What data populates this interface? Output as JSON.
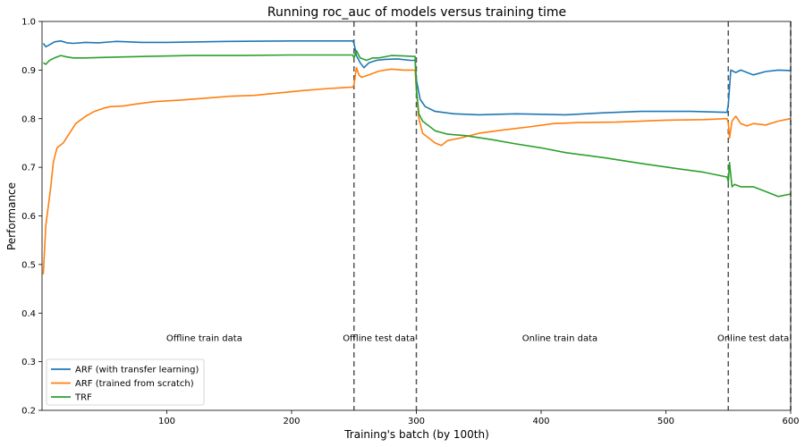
{
  "chart_data": {
    "type": "line",
    "title": "Running roc_auc of models versus training time",
    "xlabel": "Training's batch (by 100th)",
    "ylabel": "Performance",
    "xlim": [
      0,
      600
    ],
    "ylim": [
      0.2,
      1.0
    ],
    "xticks": [
      100,
      200,
      300,
      400,
      500,
      600
    ],
    "yticks": [
      0.2,
      0.3,
      0.4,
      0.5,
      0.6,
      0.7,
      0.8,
      0.9,
      1.0
    ],
    "grid": false,
    "legend_position": "lower-left",
    "vlines": [
      250,
      300,
      550,
      600
    ],
    "annotations": [
      {
        "text": "Offline train data",
        "x": 130,
        "y": 0.35
      },
      {
        "text": "Offline test data",
        "x": 270,
        "y": 0.35
      },
      {
        "text": "Online train data",
        "x": 415,
        "y": 0.35
      },
      {
        "text": "Online test data",
        "x": 570,
        "y": 0.35
      }
    ],
    "series": [
      {
        "name": "ARF (with transfer learning)",
        "color": "#1f77b4",
        "points": [
          [
            1,
            0.955
          ],
          [
            3,
            0.948
          ],
          [
            6,
            0.952
          ],
          [
            10,
            0.958
          ],
          [
            15,
            0.96
          ],
          [
            20,
            0.956
          ],
          [
            25,
            0.955
          ],
          [
            35,
            0.957
          ],
          [
            45,
            0.956
          ],
          [
            60,
            0.959
          ],
          [
            80,
            0.957
          ],
          [
            100,
            0.957
          ],
          [
            150,
            0.959
          ],
          [
            200,
            0.96
          ],
          [
            249,
            0.96
          ],
          [
            250,
            0.955
          ],
          [
            252,
            0.93
          ],
          [
            255,
            0.915
          ],
          [
            258,
            0.905
          ],
          [
            262,
            0.915
          ],
          [
            268,
            0.92
          ],
          [
            275,
            0.922
          ],
          [
            285,
            0.923
          ],
          [
            295,
            0.92
          ],
          [
            299,
            0.92
          ],
          [
            300,
            0.88
          ],
          [
            303,
            0.84
          ],
          [
            307,
            0.825
          ],
          [
            315,
            0.815
          ],
          [
            330,
            0.81
          ],
          [
            350,
            0.808
          ],
          [
            380,
            0.81
          ],
          [
            420,
            0.808
          ],
          [
            450,
            0.812
          ],
          [
            480,
            0.815
          ],
          [
            520,
            0.815
          ],
          [
            549,
            0.813
          ],
          [
            550,
            0.83
          ],
          [
            552,
            0.9
          ],
          [
            556,
            0.895
          ],
          [
            560,
            0.9
          ],
          [
            570,
            0.89
          ],
          [
            580,
            0.897
          ],
          [
            590,
            0.9
          ],
          [
            600,
            0.899
          ]
        ]
      },
      {
        "name": "ARF (trained from scratch)",
        "color": "#ff7f0e",
        "points": [
          [
            1,
            0.48
          ],
          [
            3,
            0.58
          ],
          [
            5,
            0.62
          ],
          [
            7,
            0.66
          ],
          [
            9,
            0.71
          ],
          [
            12,
            0.74
          ],
          [
            17,
            0.75
          ],
          [
            22,
            0.77
          ],
          [
            27,
            0.79
          ],
          [
            35,
            0.805
          ],
          [
            42,
            0.815
          ],
          [
            50,
            0.822
          ],
          [
            55,
            0.825
          ],
          [
            65,
            0.826
          ],
          [
            75,
            0.83
          ],
          [
            90,
            0.835
          ],
          [
            110,
            0.838
          ],
          [
            130,
            0.842
          ],
          [
            150,
            0.846
          ],
          [
            170,
            0.848
          ],
          [
            190,
            0.853
          ],
          [
            210,
            0.858
          ],
          [
            230,
            0.862
          ],
          [
            249,
            0.865
          ],
          [
            250,
            0.87
          ],
          [
            252,
            0.905
          ],
          [
            254,
            0.89
          ],
          [
            256,
            0.885
          ],
          [
            262,
            0.89
          ],
          [
            270,
            0.898
          ],
          [
            280,
            0.902
          ],
          [
            290,
            0.9
          ],
          [
            299,
            0.9
          ],
          [
            300,
            0.86
          ],
          [
            302,
            0.8
          ],
          [
            305,
            0.77
          ],
          [
            310,
            0.76
          ],
          [
            315,
            0.75
          ],
          [
            320,
            0.745
          ],
          [
            325,
            0.755
          ],
          [
            335,
            0.76
          ],
          [
            350,
            0.77
          ],
          [
            370,
            0.777
          ],
          [
            390,
            0.783
          ],
          [
            410,
            0.79
          ],
          [
            430,
            0.792
          ],
          [
            460,
            0.793
          ],
          [
            500,
            0.797
          ],
          [
            530,
            0.798
          ],
          [
            549,
            0.8
          ],
          [
            550,
            0.79
          ],
          [
            551,
            0.76
          ],
          [
            553,
            0.795
          ],
          [
            556,
            0.805
          ],
          [
            560,
            0.79
          ],
          [
            565,
            0.785
          ],
          [
            570,
            0.79
          ],
          [
            580,
            0.787
          ],
          [
            590,
            0.795
          ],
          [
            600,
            0.8
          ]
        ]
      },
      {
        "name": "TRF",
        "color": "#2ca02c",
        "points": [
          [
            1,
            0.915
          ],
          [
            3,
            0.912
          ],
          [
            6,
            0.92
          ],
          [
            10,
            0.925
          ],
          [
            15,
            0.93
          ],
          [
            20,
            0.927
          ],
          [
            25,
            0.925
          ],
          [
            35,
            0.925
          ],
          [
            50,
            0.926
          ],
          [
            80,
            0.928
          ],
          [
            120,
            0.93
          ],
          [
            160,
            0.93
          ],
          [
            200,
            0.931
          ],
          [
            249,
            0.931
          ],
          [
            250,
            0.925
          ],
          [
            252,
            0.94
          ],
          [
            255,
            0.925
          ],
          [
            260,
            0.92
          ],
          [
            265,
            0.925
          ],
          [
            270,
            0.925
          ],
          [
            280,
            0.93
          ],
          [
            290,
            0.929
          ],
          [
            299,
            0.928
          ],
          [
            300,
            0.86
          ],
          [
            302,
            0.81
          ],
          [
            305,
            0.795
          ],
          [
            310,
            0.785
          ],
          [
            315,
            0.775
          ],
          [
            325,
            0.768
          ],
          [
            340,
            0.765
          ],
          [
            360,
            0.757
          ],
          [
            380,
            0.748
          ],
          [
            400,
            0.74
          ],
          [
            420,
            0.73
          ],
          [
            450,
            0.72
          ],
          [
            480,
            0.708
          ],
          [
            510,
            0.697
          ],
          [
            530,
            0.69
          ],
          [
            549,
            0.68
          ],
          [
            550,
            0.67
          ],
          [
            551,
            0.71
          ],
          [
            553,
            0.66
          ],
          [
            555,
            0.665
          ],
          [
            560,
            0.66
          ],
          [
            570,
            0.66
          ],
          [
            580,
            0.65
          ],
          [
            590,
            0.64
          ],
          [
            600,
            0.645
          ]
        ]
      }
    ]
  }
}
